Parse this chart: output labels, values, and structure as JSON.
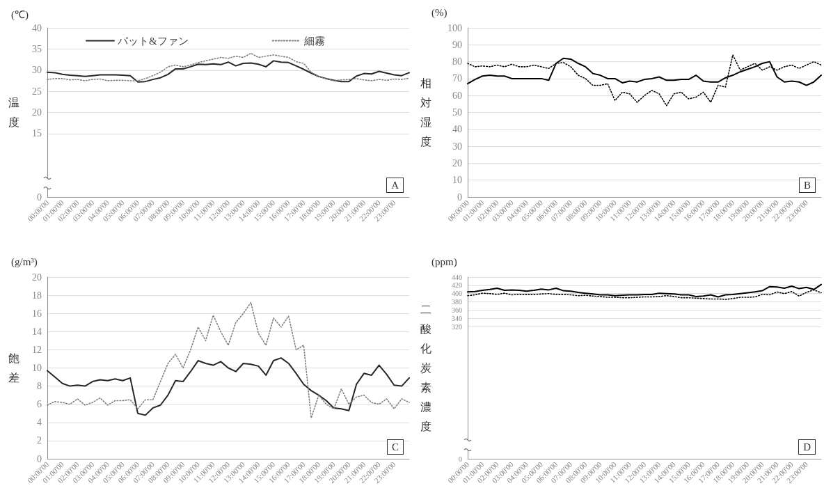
{
  "chart_data": [
    {
      "type": "line",
      "ylabel": "温度",
      "annotations": [
        "(℃)",
        "A"
      ],
      "legend": "top",
      "grid": "y",
      "marker": "none",
      "categories": [
        "00:00'00",
        null,
        "01:00'00",
        null,
        "02:00'00",
        null,
        "03:00'00",
        null,
        "04:00'00",
        null,
        "05:00'00",
        null,
        "06:00'00",
        null,
        "07:00'00",
        null,
        "08:00'00",
        null,
        "09:00'00",
        null,
        "10:00'00",
        null,
        "11:00'00",
        null,
        "12:00'00",
        null,
        "13:00'00",
        null,
        "14:00'00",
        null,
        "15:00'00",
        null,
        "16:00'00",
        null,
        "17:00'00",
        null,
        "18:00'00",
        null,
        "19:00'00",
        null,
        "20:00'00",
        null,
        "21:00'00",
        null,
        "22:00'00",
        null,
        "23:00'00",
        null,
        null
      ],
      "ylim": [
        0,
        40
      ],
      "yticks": [
        0,
        15,
        20,
        25,
        30,
        35,
        40
      ],
      "series": [
        {
          "name": "パット&ファン",
          "color": "#262626",
          "line_style": "solid",
          "values": [
            29.5,
            29.4,
            29.0,
            28.8,
            28.7,
            28.5,
            28.7,
            28.9,
            28.9,
            28.9,
            28.8,
            28.7,
            27.2,
            27.3,
            27.8,
            28.2,
            29.0,
            30.3,
            30.3,
            30.8,
            31.4,
            31.3,
            31.5,
            31.3,
            31.9,
            31.0,
            31.6,
            31.7,
            31.4,
            30.8,
            32.2,
            31.9,
            31.8,
            31.0,
            30.2,
            29.3,
            28.5,
            28.0,
            27.6,
            27.3,
            27.3,
            28.6,
            29.2,
            29.1,
            29.7,
            29.3,
            28.9,
            28.7,
            29.4
          ]
        },
        {
          "name": "細霧",
          "color": "#7f7f7f",
          "line_style": "dotted",
          "values": [
            27.8,
            28.0,
            28.0,
            27.7,
            27.8,
            27.5,
            27.8,
            27.9,
            27.5,
            27.6,
            27.6,
            27.5,
            27.5,
            28.0,
            28.7,
            29.5,
            30.8,
            31.2,
            30.8,
            31.2,
            31.8,
            32.2,
            32.6,
            33.0,
            32.8,
            33.3,
            33.0,
            34.0,
            33.0,
            33.3,
            33.6,
            33.3,
            33.0,
            32.0,
            31.6,
            29.5,
            28.5,
            28.0,
            27.5,
            27.7,
            27.8,
            28.0,
            27.7,
            27.5,
            27.8,
            27.6,
            27.9,
            27.8,
            28.1
          ]
        }
      ]
    },
    {
      "type": "line",
      "ylabel": "相対湿度",
      "annotations": [
        "(%)",
        "B"
      ],
      "grid": "y",
      "marker": "none",
      "categories": [
        "00:00'00",
        null,
        "01:00'00",
        null,
        "02:00'00",
        null,
        "03:00'00",
        null,
        "04:00'00",
        null,
        "05:00'00",
        null,
        "06:00'00",
        null,
        "07:00'00",
        null,
        "08:00'00",
        null,
        "09:00'00",
        null,
        "10:00'00",
        null,
        "11:00'00",
        null,
        "12:00'00",
        null,
        "13:00'00",
        null,
        "14:00'00",
        null,
        "15:00'00",
        null,
        "16:00'00",
        null,
        "17:00'00",
        null,
        "18:00'00",
        null,
        "19:00'00",
        null,
        "20:00'00",
        null,
        "21:00'00",
        null,
        "22:00'00",
        null,
        "23:00'00",
        null,
        null
      ],
      "ylim": [
        0,
        100
      ],
      "yticks": [
        0,
        10,
        20,
        30,
        40,
        50,
        60,
        70,
        80,
        90,
        100
      ],
      "series": [
        {
          "color": "#000000",
          "line_style": "solid",
          "values": [
            67,
            69.5,
            71.5,
            72,
            71.5,
            71.5,
            70,
            70,
            70,
            70,
            70,
            69,
            79,
            82,
            81.5,
            79,
            77,
            73,
            72,
            70,
            70,
            67.5,
            68.5,
            68,
            69.5,
            70,
            71,
            69,
            69,
            69.5,
            69.5,
            72,
            68.5,
            68,
            68,
            70.5,
            72,
            74,
            75.5,
            77,
            79,
            80,
            71,
            68,
            68.5,
            68,
            66,
            68,
            72
          ]
        },
        {
          "color": "#000000",
          "line_style": "dotted",
          "values": [
            79,
            77,
            77.5,
            77,
            78,
            77,
            78.5,
            77,
            77,
            78,
            77,
            76,
            79,
            79.5,
            77,
            72,
            70,
            66,
            66,
            67,
            57,
            62,
            61,
            56,
            60,
            63,
            61,
            54,
            61,
            62,
            58,
            59,
            62,
            56,
            66,
            65,
            84,
            75,
            77,
            79,
            75,
            77,
            75,
            77,
            78,
            76,
            78,
            80,
            78
          ]
        }
      ]
    },
    {
      "type": "line",
      "ylabel": "飽差",
      "annotations": [
        "(g/m³)",
        "C"
      ],
      "grid": "y",
      "marker": "none",
      "categories": [
        "00:00'00",
        null,
        "01:00'00",
        null,
        "02:00'00",
        null,
        "03:00'00",
        null,
        "04:00'00",
        null,
        "05:00'00",
        null,
        "06:00'00",
        null,
        "07:00'00",
        null,
        "08:00'00",
        null,
        "09:00'00",
        null,
        "10:00'00",
        null,
        "11:00'00",
        null,
        "12:00'00",
        null,
        "13:00'00",
        null,
        "14:00'00",
        null,
        "15:00'00",
        null,
        "16:00'00",
        null,
        "17:00'00",
        null,
        "18:00'00",
        null,
        "19:00'00",
        null,
        "20:00'00",
        null,
        "21:00'00",
        null,
        "22:00'00",
        null,
        "23:00'00",
        null,
        null
      ],
      "ylim": [
        0,
        20
      ],
      "yticks": [
        0,
        2,
        4,
        6,
        8,
        10,
        12,
        14,
        16,
        18,
        20
      ],
      "series": [
        {
          "color": "#262626",
          "line_style": "solid",
          "values": [
            9.7,
            9.0,
            8.3,
            8.0,
            8.1,
            8.0,
            8.5,
            8.7,
            8.6,
            8.8,
            8.6,
            8.9,
            5.0,
            4.8,
            5.6,
            5.9,
            7.0,
            8.6,
            8.5,
            9.6,
            10.8,
            10.5,
            10.3,
            10.7,
            10.0,
            9.6,
            10.5,
            10.4,
            10.2,
            9.2,
            10.8,
            11.1,
            10.5,
            9.4,
            8.2,
            7.5,
            7.0,
            6.4,
            5.6,
            5.5,
            5.3,
            8.2,
            9.4,
            9.2,
            10.3,
            9.3,
            8.1,
            8.0,
            8.9
          ]
        },
        {
          "color": "#7f7f7f",
          "line_style": "dotted",
          "values": [
            5.9,
            6.3,
            6.2,
            6.0,
            6.6,
            5.9,
            6.2,
            6.7,
            5.9,
            6.4,
            6.4,
            6.5,
            5.5,
            6.5,
            6.5,
            8.5,
            10.5,
            11.5,
            10.0,
            12.0,
            14.5,
            13.0,
            15.8,
            14.0,
            12.5,
            15.0,
            16.0,
            17.2,
            13.8,
            12.5,
            15.5,
            14.5,
            15.7,
            12.0,
            12.5,
            4.5,
            7.0,
            6.0,
            5.5,
            7.7,
            6.0,
            6.8,
            7.0,
            6.2,
            6.0,
            6.6,
            5.5,
            6.6,
            6.2
          ]
        }
      ]
    },
    {
      "type": "line",
      "ylabel": "二酸化炭素濃度",
      "annotations": [
        "(ppm)",
        "D"
      ],
      "grid": "y",
      "marker": "none",
      "categories": [
        "00:00'00",
        null,
        "01:00'00",
        null,
        "02:00'00",
        null,
        "03:00'00",
        null,
        "04:00'00",
        null,
        "05:00'00",
        null,
        "06:00'00",
        null,
        "07:00'00",
        null,
        "08:00'00",
        null,
        "09:00'00",
        null,
        "10:00'00",
        null,
        "11:00'00",
        null,
        "12:00'00",
        null,
        "13:00'00",
        null,
        "14:00'00",
        null,
        "15:00'00",
        null,
        "16:00'00",
        null,
        "17:00'00",
        null,
        "18:00'00",
        null,
        "19:00'00",
        null,
        "20:00'00",
        null,
        "21:00'00",
        null,
        "22:00'00",
        null,
        "23:00'00",
        null,
        null
      ],
      "ylim": [
        0,
        440
      ],
      "yticks": [
        0,
        320,
        340,
        360,
        380,
        400,
        420,
        440
      ],
      "series": [
        {
          "color": "#000000",
          "line_style": "solid",
          "values": [
            404,
            405,
            408,
            410,
            413,
            408,
            409,
            408,
            406,
            408,
            411,
            409,
            413,
            407,
            406,
            403,
            401,
            399,
            397,
            397,
            395,
            396,
            397,
            397,
            398,
            398,
            401,
            400,
            399,
            397,
            397,
            393,
            394,
            397,
            392,
            397,
            398,
            400,
            402,
            404,
            407,
            417,
            416,
            413,
            418,
            412,
            415,
            410,
            422
          ]
        },
        {
          "color": "#000000",
          "line_style": "dotted",
          "values": [
            395,
            397,
            401,
            400,
            398,
            401,
            397,
            398,
            398,
            398,
            399,
            400,
            398,
            398,
            397,
            395,
            396,
            394,
            393,
            391,
            391,
            390,
            390,
            391,
            392,
            392,
            393,
            395,
            393,
            390,
            390,
            389,
            388,
            387,
            387,
            386,
            388,
            391,
            391,
            392,
            398,
            397,
            404,
            400,
            405,
            394,
            403,
            409,
            402
          ]
        }
      ]
    }
  ]
}
